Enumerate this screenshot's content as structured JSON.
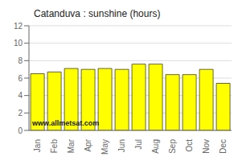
{
  "chart_data": {
    "type": "bar",
    "title": "Catanduva : sunshine (hours)",
    "categories": [
      "Jan",
      "Feb",
      "Mar",
      "Apr",
      "May",
      "Jun",
      "Jul",
      "Aug",
      "Sep",
      "Oct",
      "Nov",
      "Dec"
    ],
    "values": [
      6.5,
      6.7,
      7.1,
      7.0,
      7.1,
      7.0,
      7.6,
      7.6,
      6.4,
      6.4,
      7.0,
      5.4
    ],
    "color": "#FFFF00",
    "ylim": [
      0,
      12
    ],
    "yticks": [
      0,
      2,
      4,
      6,
      8,
      10,
      12
    ],
    "grid": true,
    "annotations": [
      "www.allmetsat.com"
    ]
  }
}
